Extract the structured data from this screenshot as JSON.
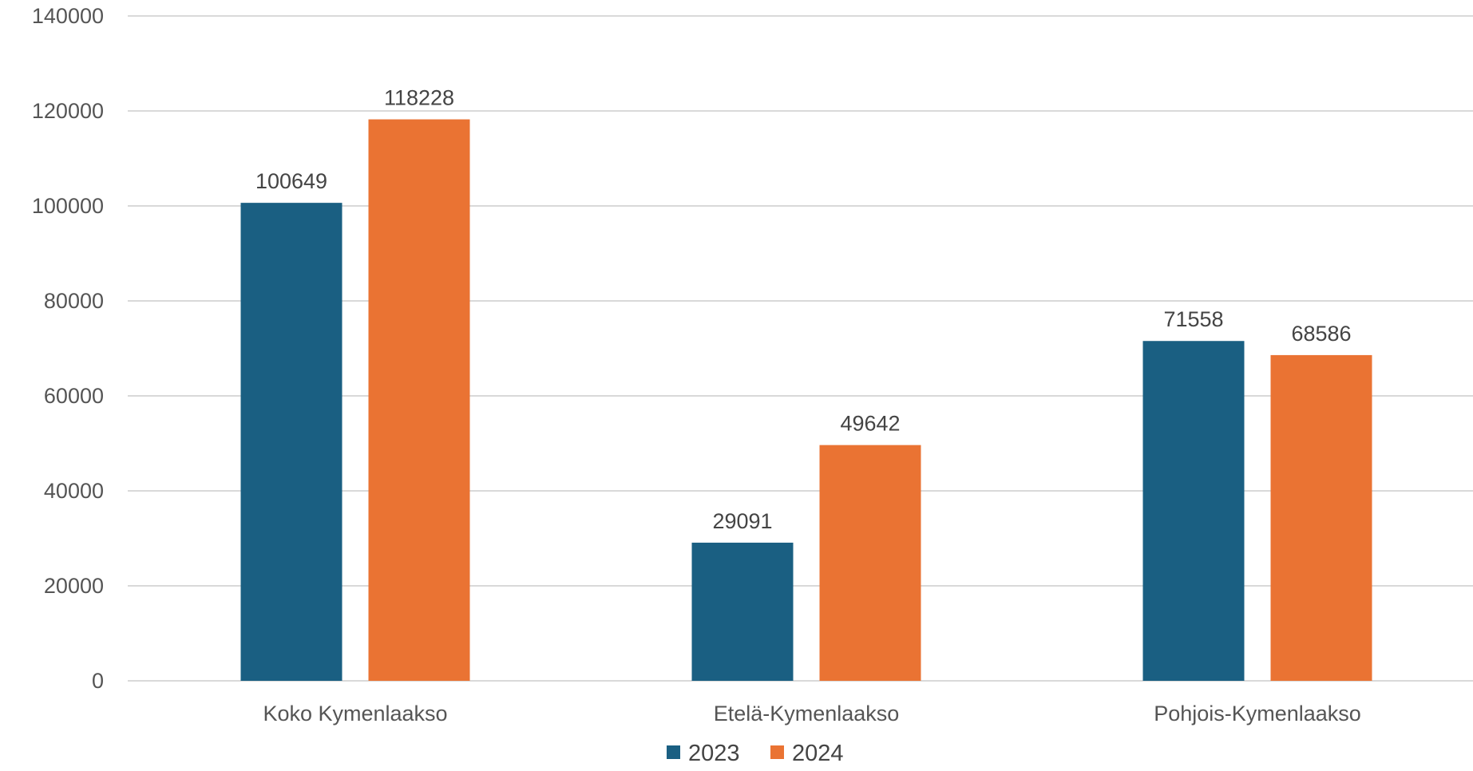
{
  "chart_data": {
    "type": "bar",
    "categories": [
      "Koko Kymenlaakso",
      "Etelä-Kymenlaakso",
      "Pohjois-Kymenlaakso"
    ],
    "series": [
      {
        "name": "2023",
        "values": [
          100649,
          29091,
          71558
        ],
        "color": "#1a5f82"
      },
      {
        "name": "2024",
        "values": [
          118228,
          49642,
          68586
        ],
        "color": "#ea7333"
      }
    ],
    "yticks": [
      0,
      20000,
      40000,
      60000,
      80000,
      100000,
      120000,
      140000
    ],
    "ylim": [
      0,
      140000
    ],
    "grid": true,
    "legend_position": "bottom",
    "data_labels": true
  }
}
